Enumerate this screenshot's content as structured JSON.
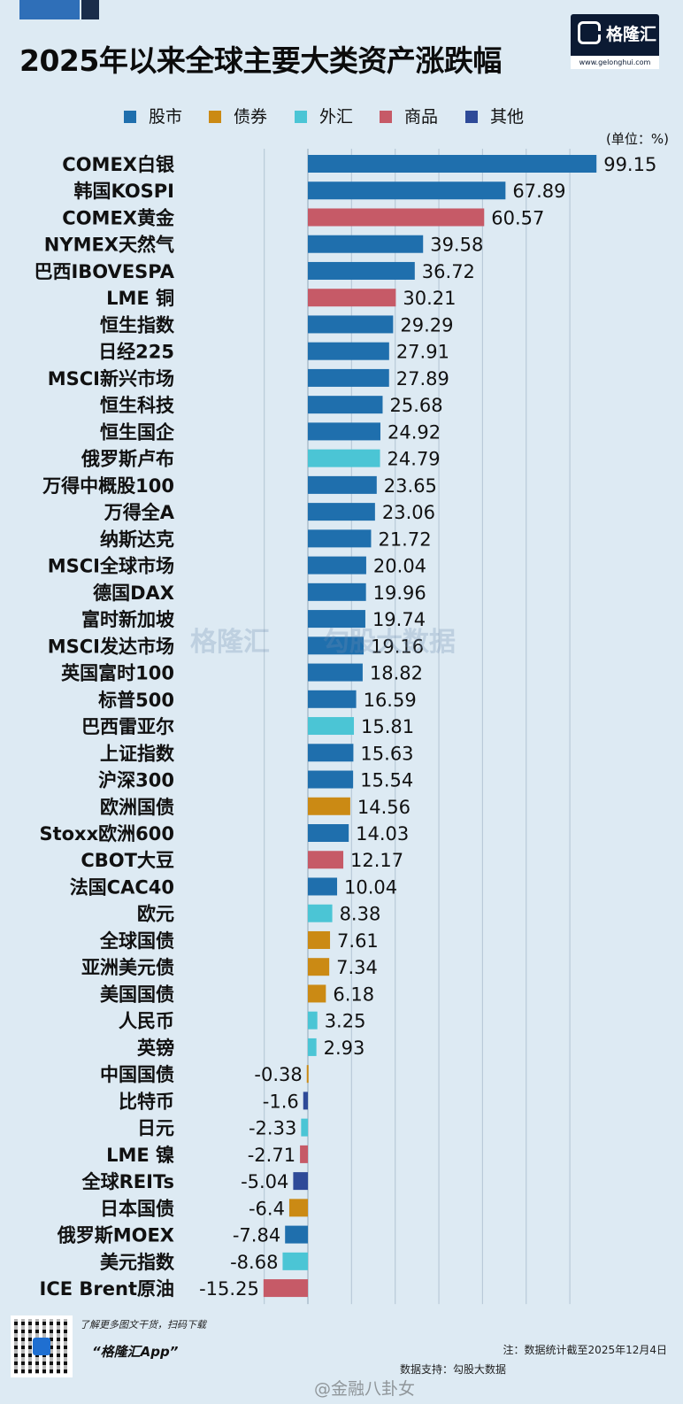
{
  "header": {
    "title": "2025年以来全球主要大类资产涨跌幅",
    "logo_name": "格隆汇",
    "logo_url": "www.gelonghui.com"
  },
  "colors": {
    "background": "#ddeaf3",
    "grid": "#b9cad8",
    "stock": "#1f6fad",
    "bond": "#cb8a14",
    "fx": "#4bc5d5",
    "commodity": "#c65a67",
    "other": "#2e4a98"
  },
  "legend": [
    {
      "key": "stock",
      "label": "股市",
      "color": "#1f6fad"
    },
    {
      "key": "bond",
      "label": "债券",
      "color": "#cb8a14"
    },
    {
      "key": "fx",
      "label": "外汇",
      "color": "#4bc5d5"
    },
    {
      "key": "commodity",
      "label": "商品",
      "color": "#c65a67"
    },
    {
      "key": "other",
      "label": "其他",
      "color": "#2e4a98"
    }
  ],
  "unit_label": "(单位：%)",
  "watermark": {
    "text1": "格隆汇",
    "text2": "勾股大数据"
  },
  "chart_data": {
    "type": "bar",
    "orientation": "horizontal",
    "title": "2025年以来全球主要大类资产涨跌幅",
    "xlim": [
      -16,
      100
    ],
    "grid": true,
    "legend_position": "top",
    "categories": [
      "COMEX白银",
      "韩国KOSPI",
      "COMEX黄金",
      "NYMEX天然气",
      "巴西IBOVESPA",
      "LME 铜",
      "恒生指数",
      "日经225",
      "MSCI新兴市场",
      "恒生科技",
      "恒生国企",
      "俄罗斯卢布",
      "万得中概股100",
      "万得全A",
      "纳斯达克",
      "MSCI全球市场",
      "德国DAX",
      "富时新加坡",
      "MSCI发达市场",
      "英国富时100",
      "标普500",
      "巴西雷亚尔",
      "上证指数",
      "沪深300",
      "欧洲国债",
      "Stoxx欧洲600",
      "CBOT大豆",
      "法国CAC40",
      "欧元",
      "全球国债",
      "亚洲美元债",
      "美国国债",
      "人民币",
      "英镑",
      "中国国债",
      "比特币",
      "日元",
      "LME 镍",
      "全球REITs",
      "日本国债",
      "俄罗斯MOEX",
      "美元指数",
      "ICE Brent原油"
    ],
    "values": [
      99.15,
      67.89,
      60.57,
      39.58,
      36.72,
      30.21,
      29.29,
      27.91,
      27.89,
      25.68,
      24.92,
      24.79,
      23.65,
      23.06,
      21.72,
      20.04,
      19.96,
      19.74,
      19.16,
      18.82,
      16.59,
      15.81,
      15.63,
      15.54,
      14.56,
      14.03,
      12.17,
      10.04,
      8.38,
      7.61,
      7.34,
      6.18,
      3.25,
      2.93,
      -0.38,
      -1.6,
      -2.33,
      -2.71,
      -5.04,
      -6.4,
      -7.84,
      -8.68,
      -15.25
    ],
    "value_labels": [
      "99.15",
      "67.89",
      "60.57",
      "39.58",
      "36.72",
      "30.21",
      "29.29",
      "27.91",
      "27.89",
      "25.68",
      "24.92",
      "24.79",
      "23.65",
      "23.06",
      "21.72",
      "20.04",
      "19.96",
      "19.74",
      "19.16",
      "18.82",
      "16.59",
      "15.81",
      "15.63",
      "15.54",
      "14.56",
      "14.03",
      "12.17",
      "10.04",
      "8.38",
      "7.61",
      "7.34",
      "6.18",
      "3.25",
      "2.93",
      "-0.38",
      "-1.6",
      "-2.33",
      "-2.71",
      "-5.04",
      "-6.4",
      "-7.84",
      "-8.68",
      "-15.25"
    ],
    "asset_class": [
      "stock",
      "stock",
      "commodity",
      "stock",
      "stock",
      "commodity",
      "stock",
      "stock",
      "stock",
      "stock",
      "stock",
      "fx",
      "stock",
      "stock",
      "stock",
      "stock",
      "stock",
      "stock",
      "stock",
      "stock",
      "stock",
      "fx",
      "stock",
      "stock",
      "bond",
      "stock",
      "commodity",
      "stock",
      "fx",
      "bond",
      "bond",
      "bond",
      "fx",
      "fx",
      "bond",
      "other",
      "fx",
      "commodity",
      "other",
      "bond",
      "stock",
      "fx",
      "commodity"
    ]
  },
  "footer": {
    "promo": "了解更多图文干货，扫码下载",
    "app_name": "“格隆汇App”",
    "note": "注：数据统计截至2025年12月4日",
    "support": "数据支持：勾股大数据",
    "weibo": "@金融八卦女"
  }
}
